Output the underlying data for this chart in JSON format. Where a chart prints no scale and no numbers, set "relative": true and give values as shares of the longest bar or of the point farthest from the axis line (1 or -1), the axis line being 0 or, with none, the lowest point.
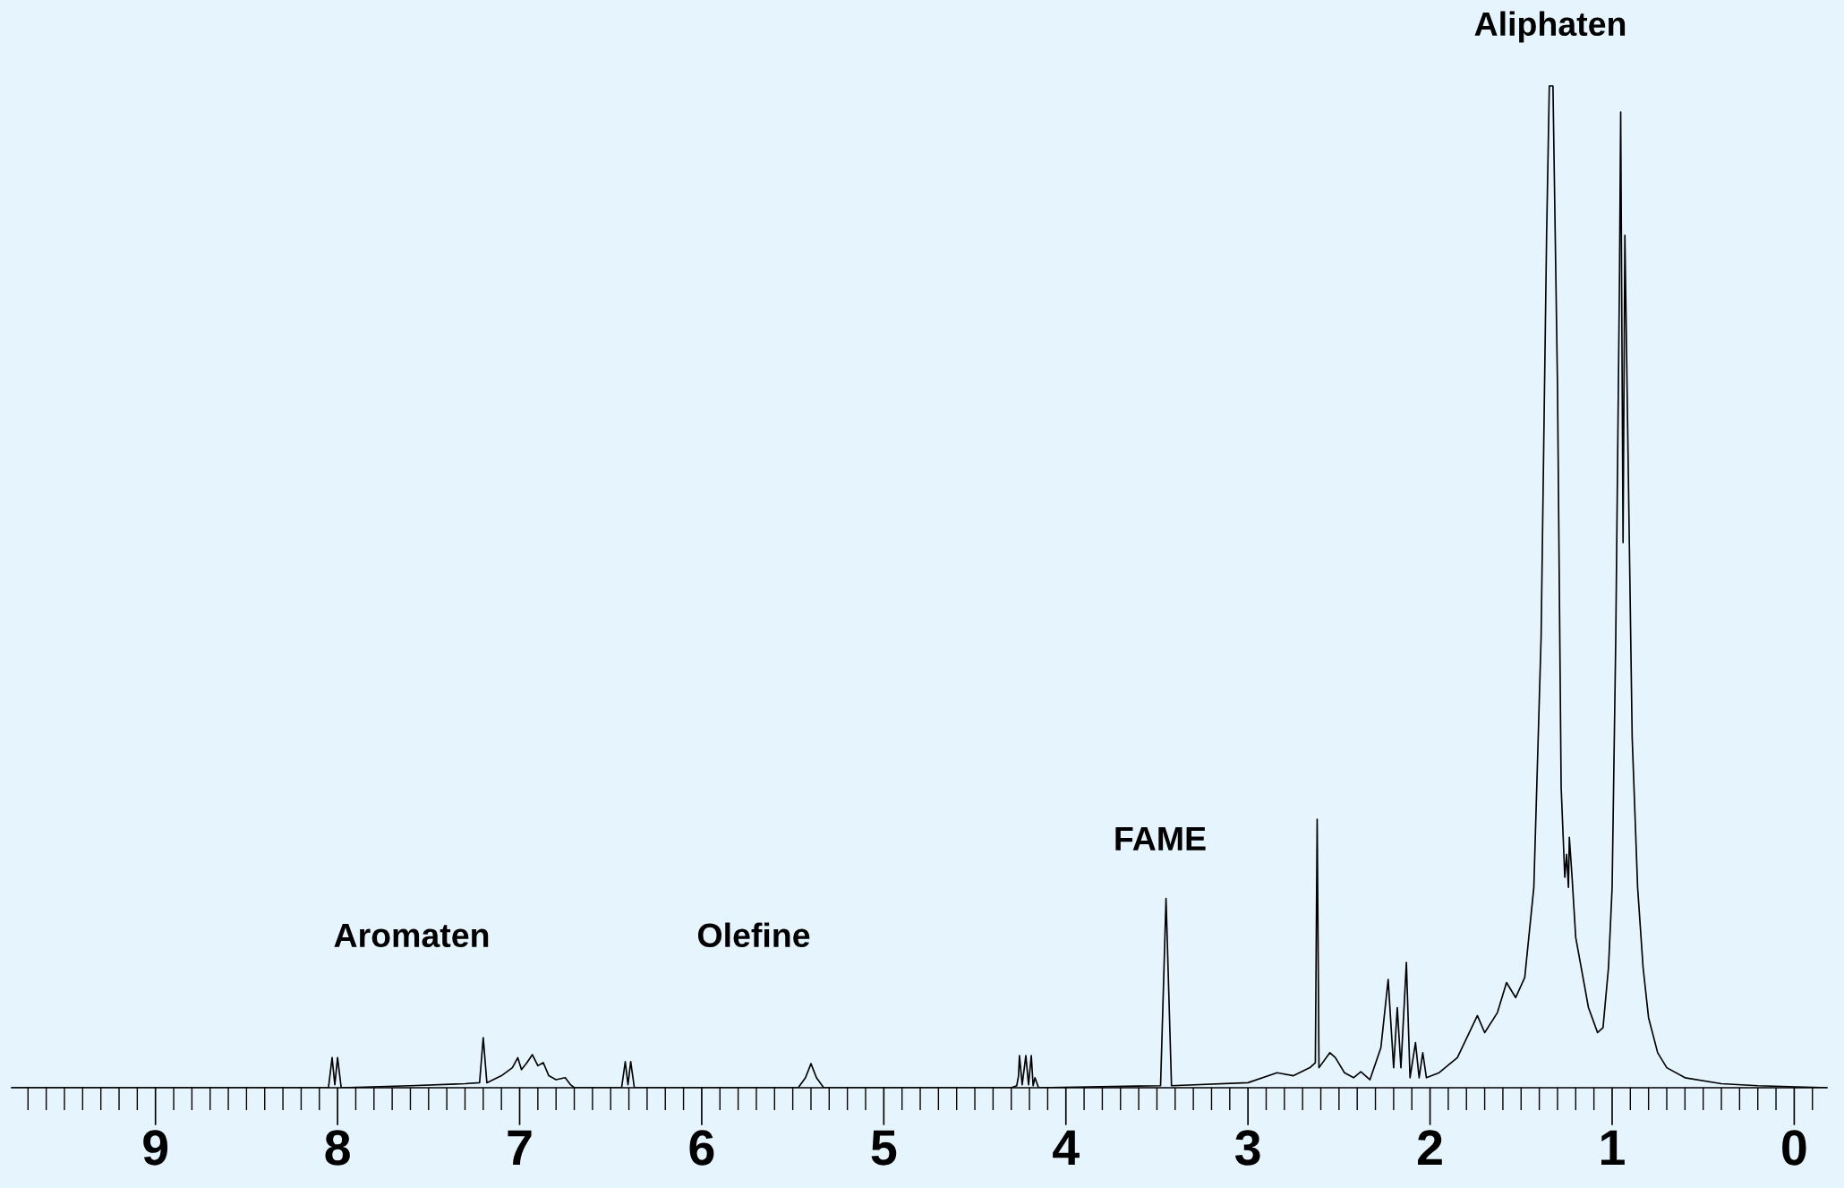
{
  "chart_data": {
    "type": "line",
    "relative": true,
    "x": [
      9.79,
      8.05,
      8.03,
      8.015,
      8.0,
      7.98,
      7.6,
      7.3,
      7.22,
      7.2,
      7.18,
      7.1,
      7.04,
      7.01,
      6.99,
      6.96,
      6.93,
      6.9,
      6.87,
      6.84,
      6.8,
      6.75,
      6.72,
      6.7,
      6.44,
      6.42,
      6.405,
      6.39,
      6.37,
      5.47,
      5.43,
      5.4,
      5.37,
      5.33,
      4.3,
      4.27,
      4.26,
      4.255,
      4.24,
      4.22,
      4.205,
      4.19,
      4.18,
      4.17,
      4.15,
      3.48,
      3.45,
      3.42,
      3.0,
      2.84,
      2.75,
      2.66,
      2.63,
      2.62,
      2.61,
      2.55,
      2.52,
      2.47,
      2.42,
      2.38,
      2.33,
      2.27,
      2.23,
      2.2,
      2.18,
      2.16,
      2.13,
      2.11,
      2.08,
      2.06,
      2.04,
      2.02,
      1.95,
      1.85,
      1.74,
      1.7,
      1.63,
      1.58,
      1.53,
      1.48,
      1.43,
      1.39,
      1.36,
      1.345,
      1.325,
      1.3,
      1.28,
      1.26,
      1.25,
      1.24,
      1.235,
      1.22,
      1.2,
      1.17,
      1.13,
      1.08,
      1.05,
      1.02,
      1.0,
      0.98,
      0.96,
      0.953,
      0.94,
      0.93,
      0.91,
      0.89,
      0.86,
      0.83,
      0.8,
      0.75,
      0.7,
      0.6,
      0.4,
      0.2,
      -0.18
    ],
    "values": [
      0,
      0,
      0.03,
      0.003,
      0.03,
      0,
      0.002,
      0.004,
      0.005,
      0.05,
      0.005,
      0.012,
      0.02,
      0.03,
      0.018,
      0.025,
      0.033,
      0.022,
      0.025,
      0.012,
      0.008,
      0.01,
      0.003,
      0,
      0,
      0.026,
      0.003,
      0.026,
      0,
      0,
      0.01,
      0.024,
      0.01,
      0,
      0,
      0.002,
      0.012,
      0.032,
      0.003,
      0.032,
      0.003,
      0.032,
      0.002,
      0.01,
      0,
      0.002,
      0.189,
      0.002,
      0.005,
      0.015,
      0.012,
      0.02,
      0.025,
      0.268,
      0.02,
      0.035,
      0.03,
      0.015,
      0.01,
      0.016,
      0.008,
      0.04,
      0.108,
      0.02,
      0.08,
      0.02,
      0.125,
      0.01,
      0.045,
      0.01,
      0.035,
      0.01,
      0.015,
      0.03,
      0.072,
      0.055,
      0.075,
      0.105,
      0.09,
      0.11,
      0.2,
      0.45,
      0.85,
      1.0,
      1.0,
      0.7,
      0.3,
      0.21,
      0.233,
      0.2,
      0.25,
      0.21,
      0.15,
      0.12,
      0.08,
      0.055,
      0.06,
      0.12,
      0.2,
      0.45,
      0.8,
      0.974,
      0.544,
      0.851,
      0.6,
      0.35,
      0.2,
      0.12,
      0.07,
      0.035,
      0.02,
      0.01,
      0.004,
      0.002,
      0
    ],
    "color": "#000000",
    "xlim": [
      9.79,
      -0.18
    ],
    "xticks": [
      0,
      1,
      2,
      3,
      4,
      5,
      6,
      7,
      8,
      9
    ],
    "annotations": [
      "Aromaten",
      "Olefine",
      "FAME",
      "Aliphaten"
    ]
  }
}
